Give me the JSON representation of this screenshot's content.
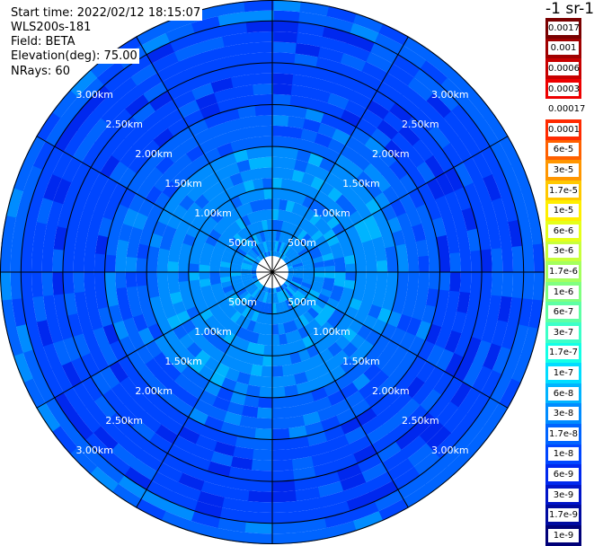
{
  "header": {
    "start_time": "Start time: 2022/02/12 18:15:07",
    "instrument": "WLS200s-181",
    "field": "Field: BETA",
    "elevation": "Elevation(deg): 75.00",
    "nrays": "NRays: 60"
  },
  "colorbar": {
    "units": "-1 sr-1",
    "levels": [
      {
        "label": "0.0017",
        "color": "#7a0000"
      },
      {
        "label": "0.001",
        "color": "#a00000"
      },
      {
        "label": "0.0006",
        "color": "#c80000"
      },
      {
        "label": "0.0003",
        "color": "#ee0000"
      },
      {
        "label": "0.00017",
        "color": "#ffffff"
      },
      {
        "label": "0.0001",
        "color": "#ff2a00"
      },
      {
        "label": "6e-5",
        "color": "#ff6000"
      },
      {
        "label": "3e-5",
        "color": "#ff9600"
      },
      {
        "label": "1.7e-5",
        "color": "#ffc800"
      },
      {
        "label": "1e-5",
        "color": "#ffee00"
      },
      {
        "label": "6e-6",
        "color": "#e6ff1a"
      },
      {
        "label": "3e-6",
        "color": "#c8ff3c"
      },
      {
        "label": "1.7e-6",
        "color": "#a4ff5e"
      },
      {
        "label": "1e-6",
        "color": "#80ff80"
      },
      {
        "label": "6e-7",
        "color": "#5effa4"
      },
      {
        "label": "3e-7",
        "color": "#3cffc8"
      },
      {
        "label": "1.7e-7",
        "color": "#14ffe6"
      },
      {
        "label": "1e-7",
        "color": "#00ddff"
      },
      {
        "label": "6e-8",
        "color": "#00b4ff"
      },
      {
        "label": "3e-8",
        "color": "#008cff"
      },
      {
        "label": "1.7e-8",
        "color": "#0064ff"
      },
      {
        "label": "1e-8",
        "color": "#0046ff"
      },
      {
        "label": "6e-9",
        "color": "#0028ee"
      },
      {
        "label": "3e-9",
        "color": "#0014c8"
      },
      {
        "label": "1.7e-9",
        "color": "#000aa0"
      },
      {
        "label": "1e-9",
        "color": "#000078"
      }
    ]
  },
  "chart_data": {
    "type": "heatmap",
    "projection": "polar",
    "rings_km": [
      0.5,
      1.0,
      1.5,
      2.0,
      2.5,
      3.0
    ],
    "ring_labels": [
      "500m",
      "1.00km",
      "1.50km",
      "2.00km",
      "2.50km",
      "3.00km"
    ],
    "spokes_deg": [
      0,
      30,
      60,
      90,
      120,
      150,
      180,
      210,
      240,
      270,
      300,
      330
    ],
    "n_rays": 60,
    "max_range_km": 3.25,
    "bands": [
      {
        "from_km": 0.0,
        "to_km": 1.5,
        "value": "3e-8"
      },
      {
        "from_km": 1.5,
        "to_km": 2.0,
        "value": "1.7e-8"
      },
      {
        "from_km": 2.0,
        "to_km": 3.0,
        "value": "1e-8"
      },
      {
        "from_km": 3.0,
        "to_km": 3.25,
        "value": "1.7e-8"
      }
    ],
    "grid": true
  }
}
